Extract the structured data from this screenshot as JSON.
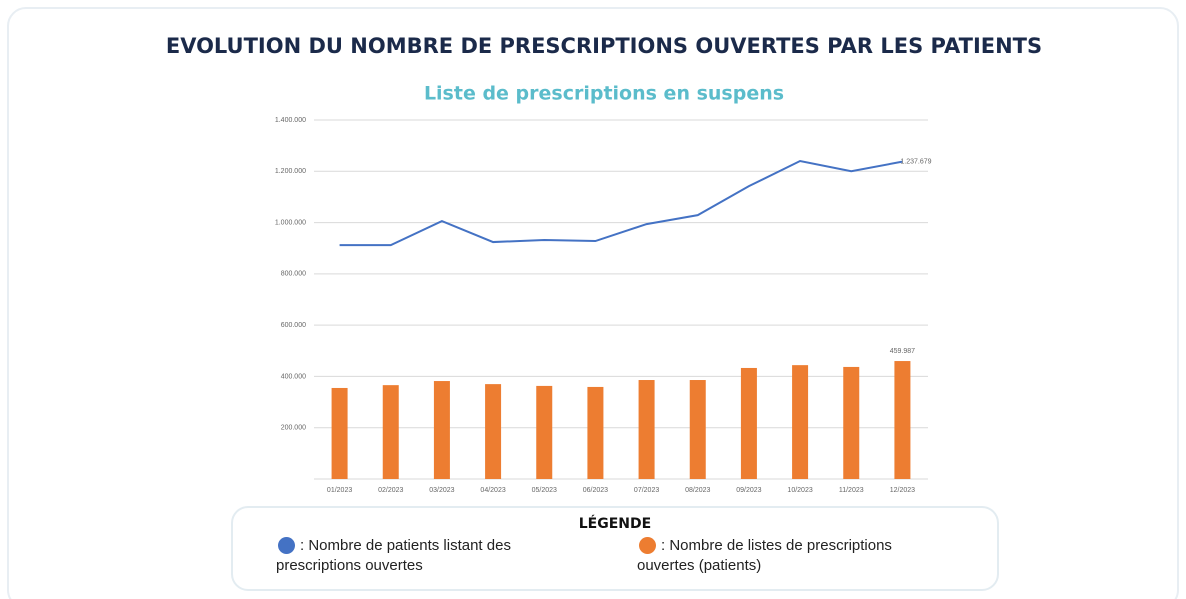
{
  "chart_data": {
    "type": "bar+line",
    "title": "EVOLUTION DU NOMBRE DE PRESCRIPTIONS OUVERTES PAR LES PATIENTS",
    "subtitle": "Liste de prescriptions en suspens",
    "categories": [
      "01/2023",
      "02/2023",
      "03/2023",
      "04/2023",
      "05/2023",
      "06/2023",
      "07/2023",
      "08/2023",
      "09/2023",
      "10/2023",
      "11/2023",
      "12/2023"
    ],
    "series": [
      {
        "name": ": Nombre de patients listant des prescriptions ouvertes",
        "type": "line",
        "color": "#4472c4",
        "values": [
          912000,
          912000,
          1006000,
          924000,
          932000,
          928000,
          994000,
          1029000,
          1142000,
          1240000,
          1200000,
          1237679
        ],
        "value_labels": [
          null,
          null,
          null,
          null,
          null,
          null,
          null,
          null,
          null,
          null,
          null,
          "1.237.679"
        ]
      },
      {
        "name": ": Nombre de listes de prescriptions ouvertes (patients)",
        "type": "bar",
        "color": "#ed7d31",
        "values": [
          355000,
          366000,
          382000,
          370000,
          363000,
          359000,
          386000,
          386000,
          433000,
          444000,
          437000,
          459987
        ],
        "value_labels": [
          null,
          null,
          null,
          null,
          null,
          null,
          null,
          null,
          null,
          null,
          null,
          "459.987"
        ]
      }
    ],
    "ylim": [
      0,
      1400000
    ],
    "yticks": [
      {
        "value": 200000,
        "label": "200.000"
      },
      {
        "value": 400000,
        "label": "400.000"
      },
      {
        "value": 600000,
        "label": "600.000"
      },
      {
        "value": 800000,
        "label": "800.000"
      },
      {
        "value": 1000000,
        "label": "1.000.000"
      },
      {
        "value": 1200000,
        "label": "1.200.000"
      },
      {
        "value": 1400000,
        "label": "1.400.000"
      }
    ],
    "grid": true,
    "legend_title": "LÉGENDE"
  }
}
